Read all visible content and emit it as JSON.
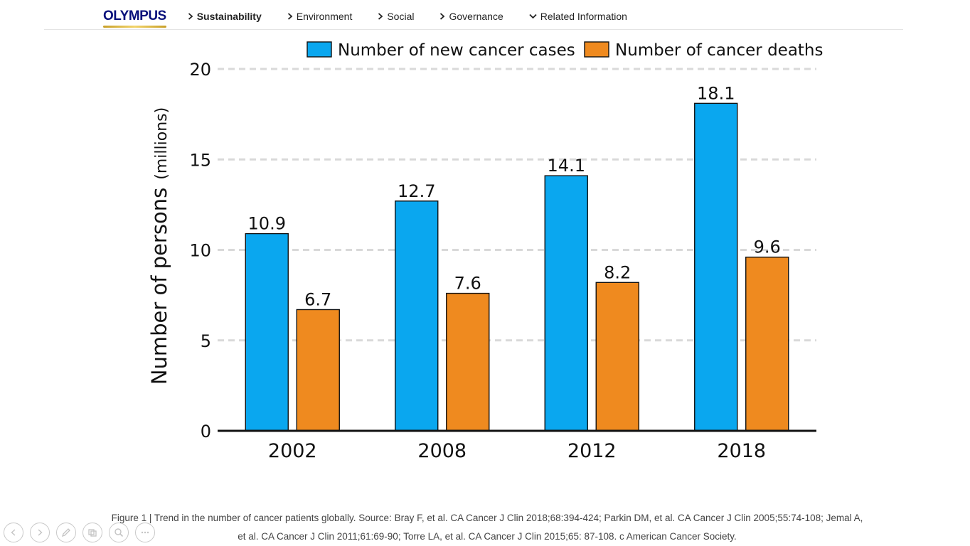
{
  "nav": {
    "logo": "OLYMPUS",
    "items": [
      {
        "label": "Sustainability",
        "icon": "chevron-right-icon",
        "active": true
      },
      {
        "label": "Environment",
        "icon": "chevron-right-icon",
        "active": false
      },
      {
        "label": "Social",
        "icon": "chevron-right-icon",
        "active": false
      },
      {
        "label": "Governance",
        "icon": "chevron-right-icon",
        "active": false
      },
      {
        "label": "Related Information",
        "icon": "chevron-down-icon",
        "active": false
      }
    ]
  },
  "chart_data": {
    "type": "bar",
    "title": "",
    "xlabel": "",
    "ylabel_main": "Number of persons",
    "ylabel_unit": "(millions)",
    "categories": [
      "2002",
      "2008",
      "2012",
      "2018"
    ],
    "series": [
      {
        "name": "Number of new cancer cases",
        "color": "#0aa7ef",
        "values": [
          10.9,
          12.7,
          14.1,
          18.1
        ],
        "labels": [
          "10.9",
          "12.7",
          "14.1",
          "18.1"
        ]
      },
      {
        "name": "Number of cancer deaths",
        "color": "#ef8a1f",
        "values": [
          6.7,
          7.6,
          8.2,
          9.6
        ],
        "labels": [
          "6.7",
          "7.6",
          "8.2",
          "9.6"
        ]
      }
    ],
    "ylim": [
      0,
      20
    ],
    "yticks": [
      0,
      5,
      10,
      15,
      20
    ],
    "ytick_labels": [
      "0",
      "5",
      "10",
      "15",
      "20"
    ],
    "grid": true,
    "legend_position": "top-right"
  },
  "caption": {
    "line1": "Figure 1 | Trend in the number of cancer patients globally. Source: Bray F, et al. CA Cancer J Clin 2018;68:394-424; Parkin DM, et al. CA Cancer J Clin 2005;55:74-108; Jemal A,",
    "line2": "et al. CA Cancer J Clin 2011;61:69-90; Torre LA, et al. CA Cancer J Clin 2015;65: 87-108. c American Cancer Society."
  },
  "controls": [
    "previous-icon",
    "next-icon",
    "pen-icon",
    "slides-icon",
    "zoom-icon",
    "more-icon"
  ]
}
